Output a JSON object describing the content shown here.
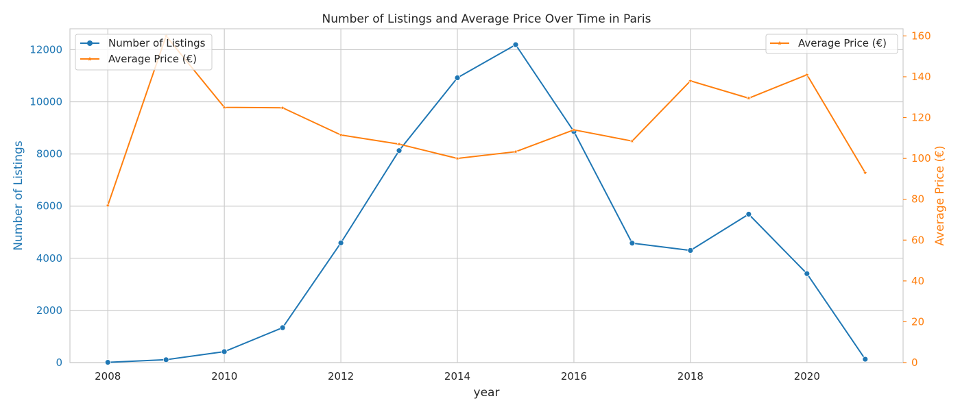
{
  "colors": {
    "listings": "#1f77b4",
    "price": "#ff7f0e",
    "grid": "#cccccc",
    "axis_text": "#262626"
  },
  "chart_data": {
    "type": "line",
    "title": "Number of Listings and Average Price Over Time in Paris",
    "xlabel": "year",
    "ylabel_left": "Number of Listings",
    "ylabel_right": "Average Price (€)",
    "x": [
      2008,
      2009,
      2010,
      2011,
      2012,
      2013,
      2014,
      2015,
      2016,
      2017,
      2018,
      2019,
      2020,
      2021
    ],
    "xlim": [
      2007.35,
      2021.65
    ],
    "xticks": [
      2008,
      2010,
      2012,
      2014,
      2016,
      2018,
      2020
    ],
    "ylim_left": [
      0,
      12800
    ],
    "yticks_left": [
      0,
      2000,
      4000,
      6000,
      8000,
      10000,
      12000
    ],
    "ylim_right": [
      0,
      163.5
    ],
    "yticks_right": [
      0,
      20,
      40,
      60,
      80,
      100,
      120,
      140,
      160
    ],
    "grid": true,
    "series": [
      {
        "name": "Number of Listings",
        "axis": "left",
        "marker": "circle",
        "values": [
          10,
          110,
          420,
          1340,
          4590,
          8130,
          10920,
          12190,
          8860,
          4580,
          4300,
          5690,
          3410,
          130
        ]
      },
      {
        "name": "Average Price (€)",
        "axis": "right",
        "marker": "star",
        "values": [
          77,
          160,
          125,
          124.8,
          111.5,
          107,
          100,
          103.3,
          114,
          108.5,
          138,
          129.5,
          141,
          93
        ]
      }
    ],
    "legends": [
      {
        "position": "top-left",
        "entries": [
          "Number of Listings",
          "Average Price (€)"
        ]
      },
      {
        "position": "top-right",
        "entries": [
          "Average Price (€)"
        ]
      }
    ]
  }
}
